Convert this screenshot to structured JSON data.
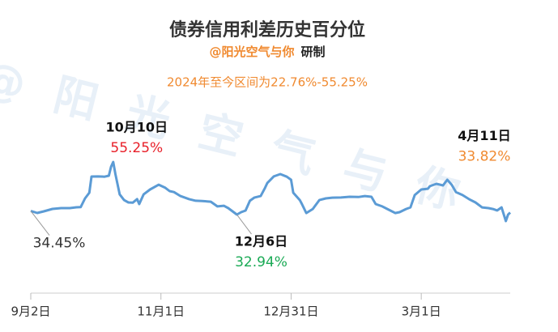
{
  "chart_data": {
    "type": "line",
    "title": "债券信用利差历史百分位",
    "subtitle": {
      "author": "@阳光空气与你",
      "suffix": "研制"
    },
    "note": "2024年至今区间为22.76%-55.25%",
    "watermark": "@阳光空气与你",
    "x": [
      "9月2日",
      "9月5日",
      "9月8日",
      "9月12日",
      "9月16日",
      "9月20日",
      "9月23日",
      "9月25日",
      "9月27日",
      "9月29日",
      "9月30日",
      "10月3日",
      "10月6日",
      "10月8日",
      "10月9日",
      "10月10日",
      "10月11日",
      "10月13日",
      "10月15日",
      "10月17日",
      "10月19日",
      "10月21日",
      "10月22日",
      "10月24日",
      "10月27日",
      "10月31日",
      "11月3日",
      "11月5日",
      "11月7日",
      "11月10日",
      "11月14日",
      "11月17日",
      "11月20日",
      "11月24日",
      "11月27日",
      "11月30日",
      "12月2日",
      "12月6日",
      "12月8日",
      "12月10日",
      "12月12日",
      "12月14日",
      "12月17日",
      "12月19日",
      "12月20日",
      "12月23日",
      "12月26日",
      "12月29日",
      "12月31日",
      "1月1日",
      "1月4日",
      "1月5日",
      "1月7日",
      "1月10日",
      "1月13日",
      "1月16日",
      "1月19日",
      "1月23日",
      "1月27日",
      "1月31日",
      "2月3日",
      "2月6日",
      "2月8日",
      "2月11日",
      "2月14日",
      "2月17日",
      "2月19日",
      "2月22日",
      "2月24日",
      "2月26日",
      "3月1日",
      "3月4日",
      "3月5日",
      "3月8日",
      "3月11日",
      "3月13日",
      "3月15日",
      "3月17日",
      "3月20日",
      "3月23日",
      "3月26日",
      "3月29日",
      "4月1日",
      "4月3日",
      "4月5日",
      "4月7日",
      "4月9日",
      "4月10日",
      "4月11日"
    ],
    "series": [
      {
        "name": "信用利差历史百分位",
        "color": "#5b9bd5",
        "values": [
          34.45,
          33.63,
          34.31,
          35.34,
          35.68,
          35.7,
          36.03,
          36.1,
          39.8,
          42.2,
          49.06,
          49.1,
          49.0,
          49.4,
          53.2,
          55.25,
          50.1,
          41.5,
          39.1,
          38.1,
          38.0,
          39.5,
          37.4,
          41.5,
          43.6,
          45.6,
          44.3,
          42.9,
          42.5,
          40.8,
          39.5,
          38.8,
          38.7,
          38.4,
          36.4,
          36.7,
          35.7,
          32.94,
          33.97,
          34.66,
          38.8,
          40.1,
          40.8,
          44.3,
          46.3,
          49.1,
          50.1,
          49.0,
          47.7,
          42.2,
          39.1,
          37.4,
          33.6,
          35.3,
          39.1,
          39.8,
          40.1,
          40.2,
          40.5,
          40.4,
          40.8,
          40.5,
          37.4,
          36.4,
          35.0,
          33.6,
          33.97,
          35.3,
          36.0,
          41.2,
          43.6,
          43.9,
          45.0,
          46.0,
          45.3,
          47.7,
          45.6,
          42.5,
          41.2,
          39.5,
          38.1,
          36.0,
          35.7,
          35.3,
          34.7,
          36.0,
          30.2,
          32.9,
          33.82
        ],
        "value_labels": [
          "34.45%",
          null,
          null,
          null,
          null,
          null,
          null,
          null,
          null,
          null,
          null,
          null,
          null,
          null,
          null,
          "55.25%",
          null,
          null,
          null,
          null,
          null,
          null,
          null,
          null,
          null,
          null,
          null,
          null,
          null,
          null,
          null,
          null,
          null,
          null,
          null,
          null,
          null,
          "32.94%",
          null,
          null,
          null,
          null,
          null,
          null,
          null,
          null,
          null,
          null,
          null,
          null,
          null,
          null,
          null,
          null,
          null,
          null,
          null,
          null,
          null,
          null,
          null,
          null,
          null,
          null,
          null,
          null,
          null,
          null,
          null,
          null,
          null,
          null,
          null,
          null,
          null,
          null,
          null,
          null,
          null,
          null,
          null,
          null,
          null,
          null,
          null,
          null,
          null,
          null,
          "33.82%"
        ],
        "value_label_colors": [
          "#333333",
          "#e8202a",
          "#1aaa55",
          "#f08a30"
        ]
      }
    ],
    "xlim": [
      "9月2日",
      "4月11日"
    ],
    "xticks": [
      "9月2日",
      "11月1日",
      "12月31日",
      "3月1日"
    ]
  }
}
